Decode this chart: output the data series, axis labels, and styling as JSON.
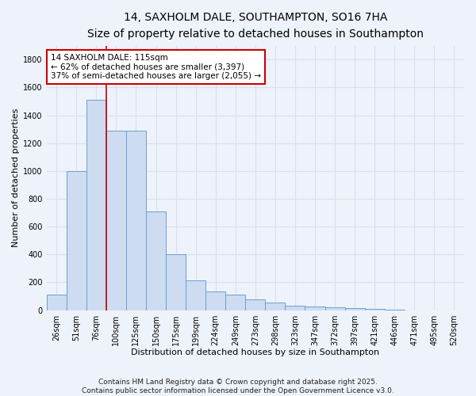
{
  "title": "14, SAXHOLM DALE, SOUTHAMPTON, SO16 7HA",
  "subtitle": "Size of property relative to detached houses in Southampton",
  "xlabel": "Distribution of detached houses by size in Southampton",
  "ylabel": "Number of detached properties",
  "categories": [
    "26sqm",
    "51sqm",
    "76sqm",
    "100sqm",
    "125sqm",
    "150sqm",
    "175sqm",
    "199sqm",
    "224sqm",
    "249sqm",
    "273sqm",
    "298sqm",
    "323sqm",
    "347sqm",
    "372sqm",
    "397sqm",
    "421sqm",
    "446sqm",
    "471sqm",
    "495sqm",
    "520sqm"
  ],
  "values": [
    110,
    1000,
    1510,
    1290,
    1290,
    710,
    400,
    215,
    135,
    110,
    75,
    55,
    30,
    25,
    20,
    15,
    10,
    5,
    0,
    0,
    0
  ],
  "bar_color": "#cddcf0",
  "bar_edge_color": "#6b9fd4",
  "background_color": "#eef2fa",
  "grid_color": "#d8e0ef",
  "annotation_text": "14 SAXHOLM DALE: 115sqm\n← 62% of detached houses are smaller (3,397)\n37% of semi-detached houses are larger (2,055) →",
  "annotation_box_color": "#ffffff",
  "annotation_box_edge": "#cc0000",
  "vline_x_idx": 3,
  "vline_color": "#cc0000",
  "ylim": [
    0,
    1900
  ],
  "yticks": [
    0,
    200,
    400,
    600,
    800,
    1000,
    1200,
    1400,
    1600,
    1800
  ],
  "footnote": "Contains HM Land Registry data © Crown copyright and database right 2025.\nContains public sector information licensed under the Open Government Licence v3.0.",
  "title_fontsize": 10,
  "subtitle_fontsize": 8.5,
  "xlabel_fontsize": 8,
  "ylabel_fontsize": 8,
  "tick_fontsize": 7,
  "annotation_fontsize": 7.5,
  "footnote_fontsize": 6.5
}
